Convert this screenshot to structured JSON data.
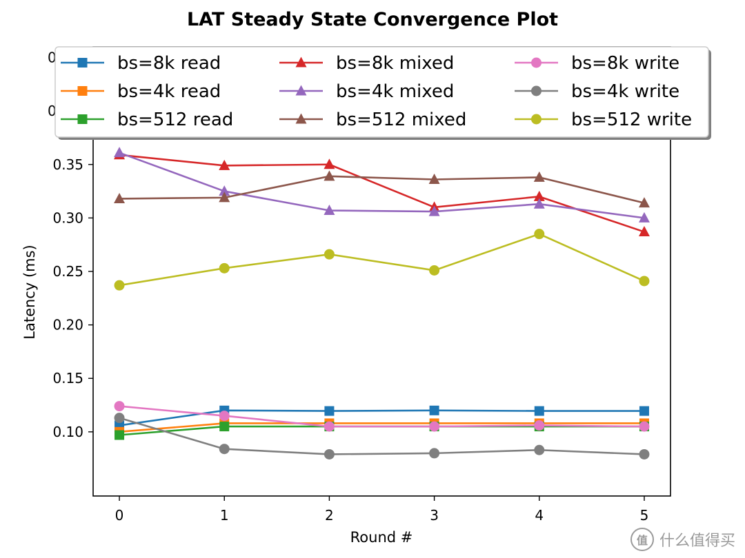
{
  "chart_data": {
    "type": "line",
    "title": "LAT Steady State Convergence Plot",
    "xlabel": "Round #",
    "ylabel": "Latency (ms)",
    "x": [
      0,
      1,
      2,
      3,
      4,
      5
    ],
    "xlim": [
      -0.25,
      5.25
    ],
    "ylim": [
      0.04,
      0.46
    ],
    "xticks": [
      "0",
      "1",
      "2",
      "3",
      "4",
      "5"
    ],
    "yticks": [
      "0.10",
      "0.15",
      "0.20",
      "0.25",
      "0.30",
      "0.35"
    ],
    "hidden_ytick_fragments": [
      "0",
      "0"
    ],
    "legend_position": "top, overlapping plot area",
    "series": [
      {
        "name": "bs=8k read",
        "color": "#1f77b4",
        "marker": "square",
        "values": [
          0.106,
          0.12,
          0.1195,
          0.12,
          0.1195,
          0.1195
        ]
      },
      {
        "name": "bs=4k read",
        "color": "#ff7f0e",
        "marker": "square",
        "values": [
          0.1,
          0.108,
          0.108,
          0.108,
          0.108,
          0.108
        ]
      },
      {
        "name": "bs=512 read",
        "color": "#2ca02c",
        "marker": "square",
        "values": [
          0.097,
          0.105,
          0.105,
          0.105,
          0.105,
          0.105
        ]
      },
      {
        "name": "bs=8k mixed",
        "color": "#d62728",
        "marker": "triangle",
        "values": [
          0.359,
          0.349,
          0.35,
          0.31,
          0.32,
          0.287
        ]
      },
      {
        "name": "bs=4k mixed",
        "color": "#9467bd",
        "marker": "triangle",
        "values": [
          0.361,
          0.325,
          0.307,
          0.306,
          0.313,
          0.3
        ]
      },
      {
        "name": "bs=512 mixed",
        "color": "#8c564b",
        "marker": "triangle",
        "values": [
          0.318,
          0.319,
          0.339,
          0.336,
          0.338,
          0.314
        ]
      },
      {
        "name": "bs=8k write",
        "color": "#e377c2",
        "marker": "circle",
        "values": [
          0.124,
          0.115,
          0.105,
          0.105,
          0.106,
          0.105
        ]
      },
      {
        "name": "bs=4k write",
        "color": "#7f7f7f",
        "marker": "circle",
        "values": [
          0.113,
          0.084,
          0.079,
          0.08,
          0.083,
          0.079
        ]
      },
      {
        "name": "bs=512 write",
        "color": "#bcbd22",
        "marker": "circle",
        "values": [
          0.237,
          0.253,
          0.266,
          0.251,
          0.285,
          0.241
        ]
      }
    ]
  },
  "watermark": {
    "badge": "值",
    "text": "什么值得买"
  }
}
